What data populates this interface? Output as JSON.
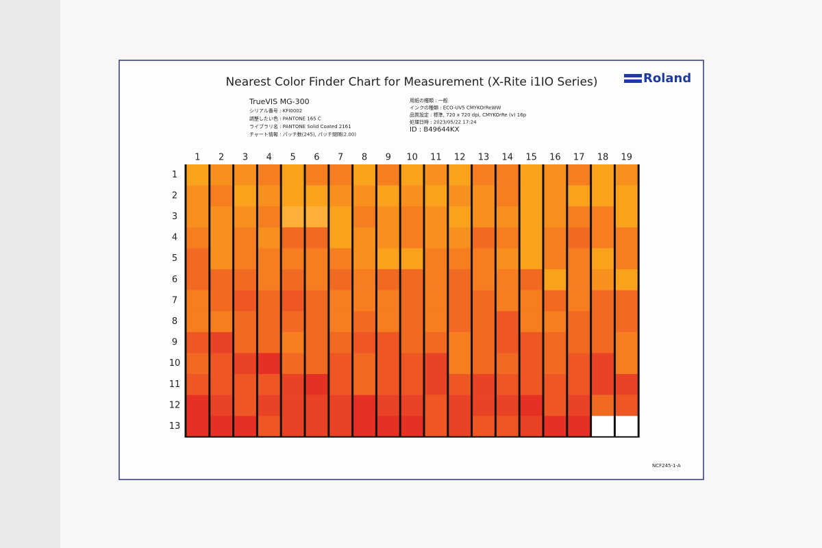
{
  "header": {
    "title": "Nearest Color Finder Chart for Measurement (X-Rite i1IO Series)",
    "logo": "Roland"
  },
  "info": {
    "left": [
      "TrueVIS MG-300",
      "シリアル番号 : KFI0002",
      "調整したい色 : PANTONE 165 C",
      "ライブラリ名 : PANTONE Solid Coated 2161",
      "チャート情報 : パッチ数(245), パッチ間隔(2.00)"
    ],
    "right": [
      "用紙の種類 : 一般",
      "インクの種類 : ECO-UV5 CMYKOrReWW",
      "品質設定 : 標準, 720 x 720 dpi, CMYKOrRe (v) 16p",
      "処理日時 : 2023/05/22 17:24",
      "ID : B49644KX"
    ]
  },
  "grid": {
    "columns": [
      "1",
      "2",
      "3",
      "4",
      "5",
      "6",
      "7",
      "8",
      "9",
      "10",
      "11",
      "12",
      "13",
      "14",
      "15",
      "16",
      "17",
      "18",
      "19"
    ],
    "rows": [
      "1",
      "2",
      "3",
      "4",
      "5",
      "6",
      "7",
      "8",
      "9",
      "10",
      "11",
      "12",
      "13"
    ],
    "colors": [
      [
        "#fba21c",
        "#f8901e",
        "#f8901e",
        "#f67d20",
        "#fba21c",
        "#f67d20",
        "#f67d20",
        "#fba21c",
        "#f67d20",
        "#fba21c",
        "#f8901e",
        "#fba21c",
        "#f67d20",
        "#f67d20",
        "#fba21c",
        "#f8901e",
        "#f67d20",
        "#fba21c",
        "#f8901e"
      ],
      [
        "#f8901e",
        "#f67d20",
        "#fba21c",
        "#f8901e",
        "#fba21c",
        "#fba21c",
        "#f8901e",
        "#f8901e",
        "#fba21c",
        "#f8901e",
        "#fba21c",
        "#f8901e",
        "#f8901e",
        "#f67d20",
        "#fba21c",
        "#f8901e",
        "#fba21c",
        "#fba21c",
        "#fba21c"
      ],
      [
        "#f8901e",
        "#f8901e",
        "#f8901e",
        "#f67d20",
        "#fcb038",
        "#fcb038",
        "#fba21c",
        "#f67d20",
        "#f8901e",
        "#f67d20",
        "#f8901e",
        "#fba21c",
        "#f8901e",
        "#f8901e",
        "#fba21c",
        "#f8901e",
        "#f67d20",
        "#f67d20",
        "#fba21c"
      ],
      [
        "#f67d20",
        "#f8901e",
        "#f67d20",
        "#f8901e",
        "#f26a22",
        "#f26a22",
        "#fba21c",
        "#f8901e",
        "#f8901e",
        "#f67d20",
        "#f8901e",
        "#f8901e",
        "#f26a22",
        "#f67d20",
        "#fba21c",
        "#f67d20",
        "#f26a22",
        "#f67d20",
        "#f67d20"
      ],
      [
        "#f26a22",
        "#f8901e",
        "#f67d20",
        "#f67d20",
        "#f67d20",
        "#f67d20",
        "#f67d20",
        "#f8901e",
        "#fba21c",
        "#fba21c",
        "#f67d20",
        "#f67d20",
        "#f67d20",
        "#f8901e",
        "#fba21c",
        "#f67d20",
        "#f67d20",
        "#fba21c",
        "#f67d20"
      ],
      [
        "#f26a22",
        "#f26a22",
        "#f26a22",
        "#f67d20",
        "#f26a22",
        "#f67d20",
        "#f26a22",
        "#f67d20",
        "#f26a22",
        "#f26a22",
        "#f67d20",
        "#f26a22",
        "#f67d20",
        "#f67d20",
        "#f26a22",
        "#fba21c",
        "#f67d20",
        "#f8901e",
        "#fba21c"
      ],
      [
        "#f67d20",
        "#f26a22",
        "#ee5623",
        "#f26a22",
        "#ee5623",
        "#f26a22",
        "#f67d20",
        "#f67d20",
        "#f67d20",
        "#f26a22",
        "#f67d20",
        "#f26a22",
        "#f26a22",
        "#f67d20",
        "#f67d20",
        "#f26a22",
        "#f67d20",
        "#f26a22",
        "#f26a22"
      ],
      [
        "#f67d20",
        "#f67d20",
        "#f26a22",
        "#f26a22",
        "#f26a22",
        "#f26a22",
        "#f67d20",
        "#f26a22",
        "#f67d20",
        "#f26a22",
        "#f67d20",
        "#f26a22",
        "#f26a22",
        "#ee5623",
        "#f67d20",
        "#f67d20",
        "#f26a22",
        "#f26a22",
        "#f26a22"
      ],
      [
        "#ee5623",
        "#ea4224",
        "#f26a22",
        "#f26a22",
        "#f67d20",
        "#f26a22",
        "#f26a22",
        "#ee5623",
        "#ee5623",
        "#f26a22",
        "#f26a22",
        "#f67d20",
        "#f26a22",
        "#ee5623",
        "#ee5623",
        "#f26a22",
        "#f26a22",
        "#f26a22",
        "#f67d20"
      ],
      [
        "#f26a22",
        "#ee5623",
        "#ea4224",
        "#e53023",
        "#f26a22",
        "#f26a22",
        "#ee5623",
        "#f26a22",
        "#ee5623",
        "#ee5623",
        "#ea4224",
        "#f67d20",
        "#f26a22",
        "#f26a22",
        "#ee5623",
        "#f26a22",
        "#ee5623",
        "#ea4224",
        "#f67d20"
      ],
      [
        "#ee5623",
        "#ee5623",
        "#ee5623",
        "#ee5623",
        "#ea4224",
        "#e53023",
        "#ee5623",
        "#f26a22",
        "#ee5623",
        "#ee5623",
        "#ea4224",
        "#ee5623",
        "#ea4224",
        "#ee5623",
        "#ee5623",
        "#ee5623",
        "#ee5623",
        "#ea4224",
        "#ea4224"
      ],
      [
        "#e53023",
        "#ea4224",
        "#ee5623",
        "#ea4224",
        "#ea4224",
        "#ea4224",
        "#ea4224",
        "#e53023",
        "#ea4224",
        "#ea4224",
        "#ee5623",
        "#ea4224",
        "#ea4224",
        "#ea4224",
        "#e53023",
        "#ee5623",
        "#ea4224",
        "#f26a22",
        "#ee5623"
      ],
      [
        "#e53023",
        "#e53023",
        "#e53023",
        "#ee5623",
        "#ea4224",
        "#ea4224",
        "#ea4224",
        "#e53023",
        "#e53023",
        "#e53023",
        "#ee5623",
        "#ea4224",
        "#ee5623",
        "#ee5623",
        "#ea4224",
        "#e53023",
        "#e53023",
        null,
        null
      ]
    ]
  },
  "footer": "NCF245-1-A"
}
